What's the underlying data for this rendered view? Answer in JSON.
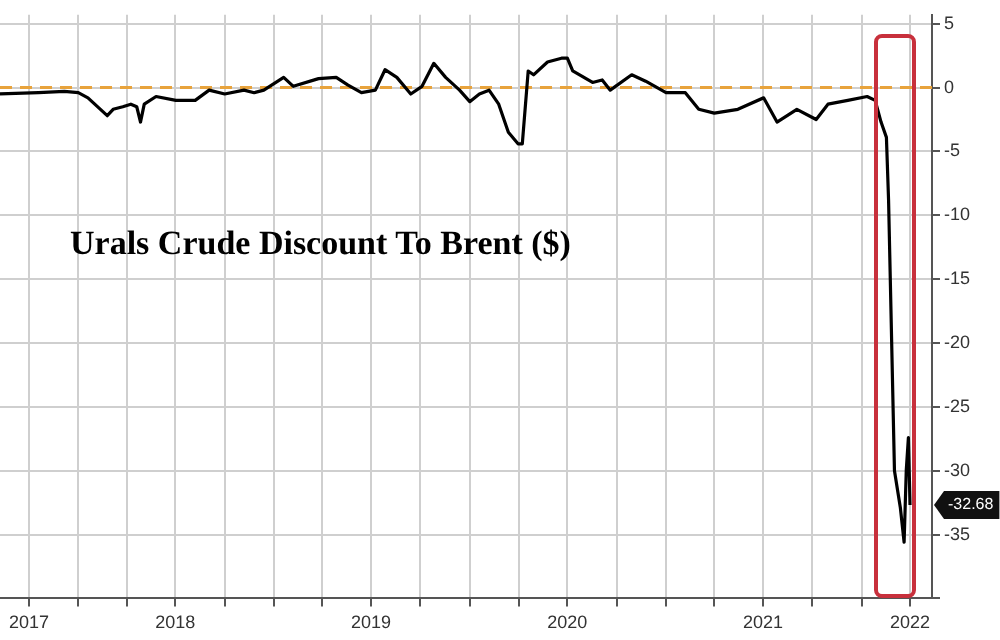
{
  "chart_data": {
    "type": "line",
    "title": "Urals Crude Discount To Brent ($)",
    "x": [
      "2017-08-08",
      "2017-10-19",
      "2017-12-06",
      "2018-01-01",
      "2018-01-19",
      "2018-02-24",
      "2018-03-07",
      "2018-03-25",
      "2018-04-09",
      "2018-04-20",
      "2018-04-27",
      "2018-05-04",
      "2018-05-26",
      "2018-07-02",
      "2018-08-07",
      "2018-09-02",
      "2018-10-01",
      "2018-11-06",
      "2018-11-25",
      "2018-12-13",
      "2019-01-19",
      "2019-02-06",
      "2019-03-25",
      "2019-04-27",
      "2019-05-19",
      "2019-06-13",
      "2019-07-09",
      "2019-07-27",
      "2019-08-18",
      "2019-09-13",
      "2019-10-04",
      "2019-10-26",
      "2019-11-17",
      "2019-12-13",
      "2020-01-01",
      "2020-01-19",
      "2020-02-06",
      "2020-02-24",
      "2020-03-13",
      "2020-03-31",
      "2020-04-08",
      "2020-04-19",
      "2020-04-29",
      "2020-05-25",
      "2020-06-20",
      "2020-07-01",
      "2020-07-11",
      "2020-08-17",
      "2020-09-04",
      "2020-09-19",
      "2020-10-29",
      "2020-11-24",
      "2021-01-01",
      "2021-02-06",
      "2021-03-03",
      "2021-04-01",
      "2021-05-15",
      "2021-07-02",
      "2021-07-27",
      "2021-09-02",
      "2021-10-08",
      "2021-10-30",
      "2021-12-06",
      "2022-01-11",
      "2022-01-26",
      "2022-02-06",
      "2022-02-16",
      "2022-02-20",
      "2022-03-03",
      "2022-03-14",
      "2022-03-21",
      "2022-03-25",
      "2022-03-29",
      "2022-04-01"
    ],
    "series": [
      {
        "color": "#000000",
        "values": [
          -0.5,
          -0.4,
          -0.3,
          -0.4,
          -0.8,
          -2.2,
          -1.7,
          -1.5,
          -1.3,
          -1.5,
          -2.7,
          -1.3,
          -0.7,
          -1.0,
          -1.0,
          -0.2,
          -0.5,
          -0.2,
          -0.4,
          -0.2,
          0.8,
          0.1,
          0.7,
          0.8,
          0.2,
          -0.4,
          -0.2,
          1.4,
          0.8,
          -0.5,
          0.1,
          1.9,
          0.8,
          -0.2,
          -1.1,
          -0.5,
          -0.2,
          -1.3,
          -3.5,
          -4.4,
          -4.4,
          1.3,
          1.0,
          2.0,
          2.3,
          2.3,
          1.3,
          0.4,
          0.6,
          -0.2,
          1.0,
          0.5,
          -0.4,
          -0.4,
          -1.7,
          -2.0,
          -1.7,
          -0.8,
          -2.7,
          -1.7,
          -2.5,
          -1.3,
          -1.0,
          -0.7,
          -1.0,
          -2.7,
          -3.9,
          -8.8,
          -30,
          -32.9,
          -35.6,
          -30,
          -27.4,
          -32.68
        ]
      }
    ],
    "xlim": [
      "2017-08-08",
      "2022-05-12"
    ],
    "xticks": [
      {
        "value": "2017-10-01",
        "label": "2017"
      },
      {
        "value": "2018-01-01",
        "label": null
      },
      {
        "value": "2018-04-01",
        "label": null
      },
      {
        "value": "2018-07-01",
        "label": "2018"
      },
      {
        "value": "2018-10-01",
        "label": null
      },
      {
        "value": "2019-01-01",
        "label": null
      },
      {
        "value": "2019-04-01",
        "label": null
      },
      {
        "value": "2019-07-01",
        "label": "2019"
      },
      {
        "value": "2019-10-01",
        "label": null
      },
      {
        "value": "2020-01-01",
        "label": null
      },
      {
        "value": "2020-04-01",
        "label": null
      },
      {
        "value": "2020-07-01",
        "label": "2020"
      },
      {
        "value": "2020-10-01",
        "label": null
      },
      {
        "value": "2021-01-01",
        "label": null
      },
      {
        "value": "2021-04-01",
        "label": null
      },
      {
        "value": "2021-07-01",
        "label": "2021"
      },
      {
        "value": "2021-10-01",
        "label": null
      },
      {
        "value": "2022-01-01",
        "label": null
      },
      {
        "value": "2022-04-01",
        "label": "2022"
      }
    ],
    "ylim": [
      -40,
      5.7
    ],
    "yticks": [
      {
        "value": -40,
        "label": null
      },
      -35,
      -30,
      -25,
      -20,
      -15,
      -10,
      -5,
      0,
      5
    ],
    "ref_lines": [
      {
        "axis": "y",
        "value": 0,
        "color": "#e8a33c",
        "line_style": "dashed"
      }
    ],
    "annotations": [
      {
        "text": "-32.68",
        "x": "2022-04-01",
        "y": -32.68
      }
    ],
    "grid": true,
    "legend": false,
    "marker": "none",
    "line_style": "solid"
  }
}
